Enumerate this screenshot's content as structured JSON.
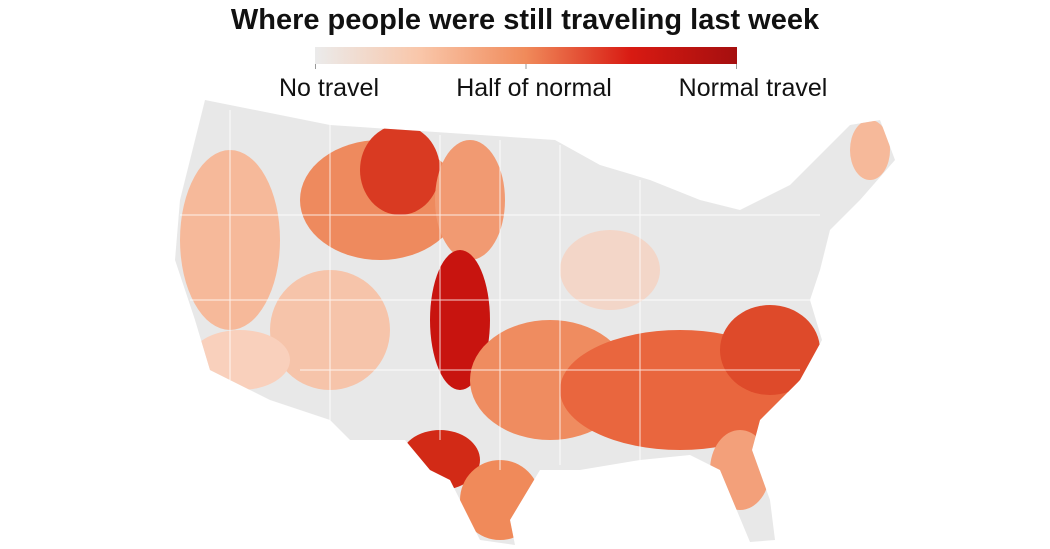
{
  "title": "Where people were still traveling last week",
  "legend": {
    "labels": [
      "No travel",
      "Half of normal",
      "Normal travel"
    ],
    "colors": [
      "#ebebeb",
      "#f9c6a9",
      "#f08a5a",
      "#d81a12",
      "#a50f0f"
    ]
  }
}
